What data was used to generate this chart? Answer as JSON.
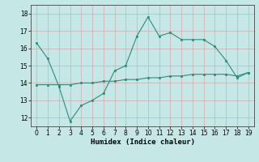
{
  "xlabel": "Humidex (Indice chaleur)",
  "x": [
    0,
    1,
    2,
    3,
    4,
    5,
    6,
    7,
    8,
    9,
    10,
    11,
    12,
    13,
    14,
    15,
    16,
    17,
    18,
    19
  ],
  "line1": [
    16.3,
    15.4,
    13.8,
    11.8,
    12.7,
    13.0,
    13.4,
    14.7,
    15.0,
    16.7,
    17.8,
    16.7,
    16.9,
    16.5,
    16.5,
    16.5,
    16.1,
    15.3,
    14.3,
    14.6
  ],
  "flat_line": [
    13.9,
    13.9,
    13.9,
    13.9,
    14.0,
    14.0,
    14.1,
    14.1,
    14.2,
    14.2,
    14.3,
    14.3,
    14.4,
    14.4,
    14.5,
    14.5,
    14.5,
    14.5,
    14.4,
    14.6
  ],
  "line_color": "#2e8b7a",
  "bg_color": "#c5e8e6",
  "grid_color": "#d4aaaa",
  "ylim": [
    11.5,
    18.5
  ],
  "yticks": [
    12,
    13,
    14,
    15,
    16,
    17,
    18
  ],
  "xlim": [
    -0.5,
    19.5
  ],
  "xticks": [
    0,
    1,
    2,
    3,
    4,
    5,
    6,
    7,
    8,
    9,
    10,
    11,
    12,
    13,
    14,
    15,
    16,
    17,
    18,
    19
  ]
}
